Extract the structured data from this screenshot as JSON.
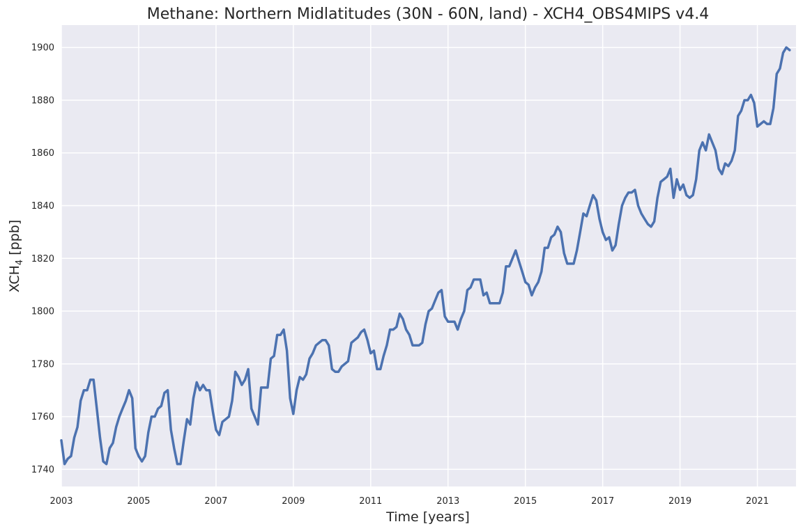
{
  "chart_data": {
    "type": "line",
    "title": "Methane: Northern Midlatitudes (30N - 60N, land) - XCH4_OBS4MIPS v4.4",
    "xlabel": "Time [years]",
    "ylabel_main": "XCH",
    "ylabel_sub": "4",
    "ylabel_unit": " [ppb]",
    "xlim": [
      2003.0,
      2022.0
    ],
    "ylim": [
      1733.5,
      1908.5
    ],
    "x_ticks": [
      2003,
      2005,
      2007,
      2009,
      2011,
      2013,
      2015,
      2017,
      2019,
      2021
    ],
    "y_ticks": [
      1740,
      1760,
      1780,
      1800,
      1820,
      1840,
      1860,
      1880,
      1900
    ],
    "grid": true,
    "colors": {
      "background": "#eaeaf2",
      "grid": "#ffffff",
      "line": "#4c72b0"
    },
    "series": [
      {
        "values_start_year": 2003,
        "values": [
          [
            1751,
            1742,
            1744,
            1745,
            1752,
            1756,
            1766,
            1770,
            1770,
            1774,
            1774,
            1763
          ],
          [
            1752,
            1743,
            1742,
            1748,
            1750,
            1756,
            1760,
            1763,
            1766,
            1770,
            1767,
            1748
          ],
          [
            1745,
            1743,
            1745,
            1754,
            1760,
            1760,
            1763,
            1764,
            1769,
            1770,
            1755,
            1748
          ],
          [
            1742,
            1742,
            1751,
            1759,
            1757,
            1767,
            1773,
            1770,
            1772,
            1770,
            1770,
            1762
          ],
          [
            1755,
            1753,
            1758,
            1759,
            1760,
            1766,
            1777,
            1775,
            1772,
            1774,
            1778,
            1763
          ],
          [
            1760,
            1757,
            1771,
            1771,
            1771,
            1782,
            1783,
            1791,
            1791,
            1793,
            1785,
            1767
          ],
          [
            1761,
            1770,
            1775,
            1774,
            1776,
            1782,
            1784,
            1787,
            1788,
            1789,
            1789,
            1787
          ],
          [
            1778,
            1777,
            1777,
            1779,
            1780,
            1781,
            1788,
            1789,
            1790,
            1792,
            1793,
            1789
          ],
          [
            1784,
            1785,
            1778,
            1778,
            1783,
            1787,
            1793,
            1793,
            1794,
            1799,
            1797,
            1793
          ],
          [
            1791,
            1787,
            1787,
            1787,
            1788,
            1795,
            1800,
            1801,
            1804,
            1807,
            1808,
            1798
          ],
          [
            1796,
            1796,
            1796,
            1793,
            1797,
            1800,
            1808,
            1809,
            1812,
            1812,
            1812,
            1806
          ],
          [
            1807,
            1803,
            1803,
            1803,
            1803,
            1807,
            1817,
            1817,
            1820,
            1823,
            1819,
            1815
          ],
          [
            1811,
            1810,
            1806,
            1809,
            1811,
            1815,
            1824,
            1824,
            1828,
            1829,
            1832,
            1830
          ],
          [
            1822,
            1818,
            1818,
            1818,
            1823,
            1830,
            1837,
            1836,
            1840,
            1844,
            1842,
            1835
          ],
          [
            1830,
            1827,
            1828,
            1823,
            1825,
            1833,
            1840,
            1843,
            1845,
            1845,
            1846,
            1840
          ],
          [
            1837,
            1835,
            1833,
            1832,
            1834,
            1843,
            1849,
            1850,
            1851,
            1854,
            1843,
            1850
          ],
          [
            1846,
            1848,
            1844,
            1843,
            1844,
            1850,
            1861,
            1864,
            1861,
            1867,
            1864,
            1861
          ],
          [
            1854,
            1852,
            1856,
            1855,
            1857,
            1861,
            1874,
            1876,
            1880,
            1880,
            1882,
            1879
          ],
          [
            1870,
            1871,
            1872,
            1871,
            1871,
            1877,
            1890,
            1892,
            1898,
            1900,
            1899
          ]
        ]
      }
    ]
  }
}
